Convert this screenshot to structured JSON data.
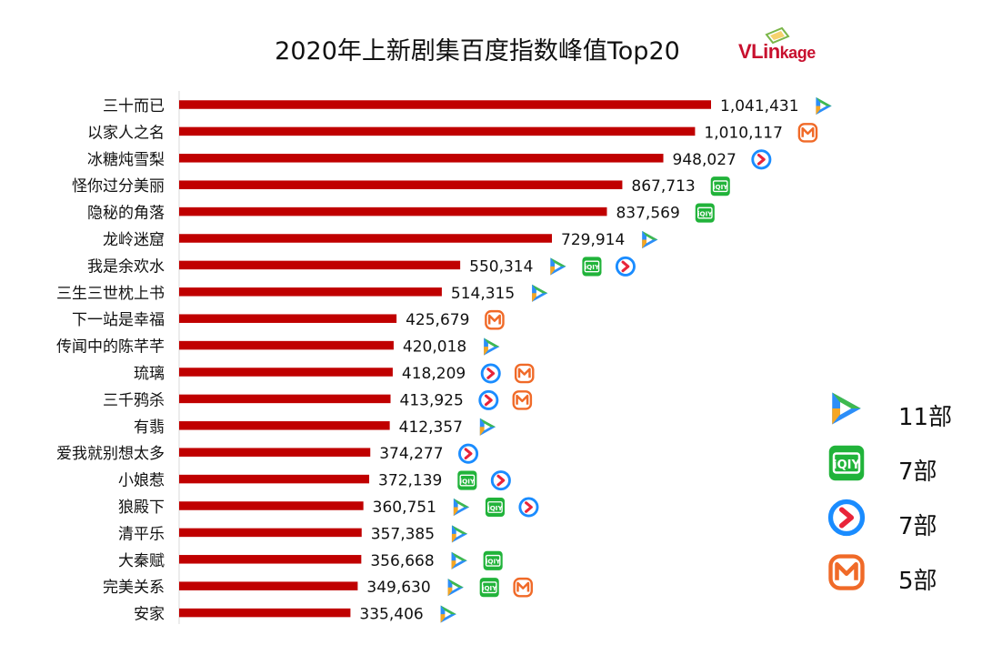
{
  "chart_data": {
    "type": "bar",
    "orientation": "horizontal",
    "title": "2020年上新剧集百度指数峰值Top20",
    "xlabel": "",
    "ylabel": "",
    "xlim": [
      0,
      1100000
    ],
    "grid": false,
    "categories": [
      "三十而已",
      "以家人之名",
      "冰糖炖雪梨",
      "怪你过分美丽",
      "隐秘的角落",
      "龙岭迷窟",
      "我是余欢水",
      "三生三世枕上书",
      "下一站是幸福",
      "传闻中的陈芊芊",
      "琉璃",
      "三千鸦杀",
      "有翡",
      "爱我就别想太多",
      "小娘惹",
      "狼殿下",
      "清平乐",
      "大秦赋",
      "完美关系",
      "安家"
    ],
    "values": [
      1041431,
      1010117,
      948027,
      867713,
      837569,
      729914,
      550314,
      514315,
      425679,
      420018,
      418209,
      413925,
      412357,
      374277,
      372139,
      360751,
      357385,
      356668,
      349630,
      335406
    ],
    "value_labels": [
      "1,041,431",
      "1,010,117",
      "948,027",
      "867,713",
      "837,569",
      "729,914",
      "550,314",
      "514,315",
      "425,679",
      "420,018",
      "418,209",
      "413,925",
      "412,357",
      "374,277",
      "372,139",
      "360,751",
      "357,385",
      "356,668",
      "349,630",
      "335,406"
    ],
    "platforms": [
      [
        "tencent"
      ],
      [
        "mango"
      ],
      [
        "youku"
      ],
      [
        "iqiyi"
      ],
      [
        "iqiyi"
      ],
      [
        "tencent"
      ],
      [
        "tencent",
        "iqiyi",
        "youku"
      ],
      [
        "tencent"
      ],
      [
        "mango"
      ],
      [
        "tencent"
      ],
      [
        "youku",
        "mango"
      ],
      [
        "youku",
        "mango"
      ],
      [
        "tencent"
      ],
      [
        "youku"
      ],
      [
        "iqiyi",
        "youku"
      ],
      [
        "tencent",
        "iqiyi",
        "youku"
      ],
      [
        "tencent"
      ],
      [
        "tencent",
        "iqiyi"
      ],
      [
        "tencent",
        "iqiyi",
        "mango"
      ],
      [
        "tencent"
      ]
    ],
    "bar_color": "#c00000",
    "legend": [
      {
        "platform": "tencent",
        "icon": "tencent-video-icon",
        "count": "11部"
      },
      {
        "platform": "iqiyi",
        "icon": "iqiyi-icon",
        "count": "7部"
      },
      {
        "platform": "youku",
        "icon": "youku-icon",
        "count": "7部"
      },
      {
        "platform": "mango",
        "icon": "mango-tv-icon",
        "count": "5部"
      }
    ],
    "legend_position": "right"
  },
  "brand": {
    "name": "VLinkage",
    "part1": "VLin",
    "part2": "kage"
  },
  "colors": {
    "bar": "#c00000",
    "tencent_green": "#3fb94f",
    "tencent_blue": "#2c8ef8",
    "tencent_orange": "#f5a623",
    "iqiyi": "#21b33a",
    "youku": "#1a8cff",
    "youku_red": "#e8243a",
    "mango": "#f06a28"
  }
}
